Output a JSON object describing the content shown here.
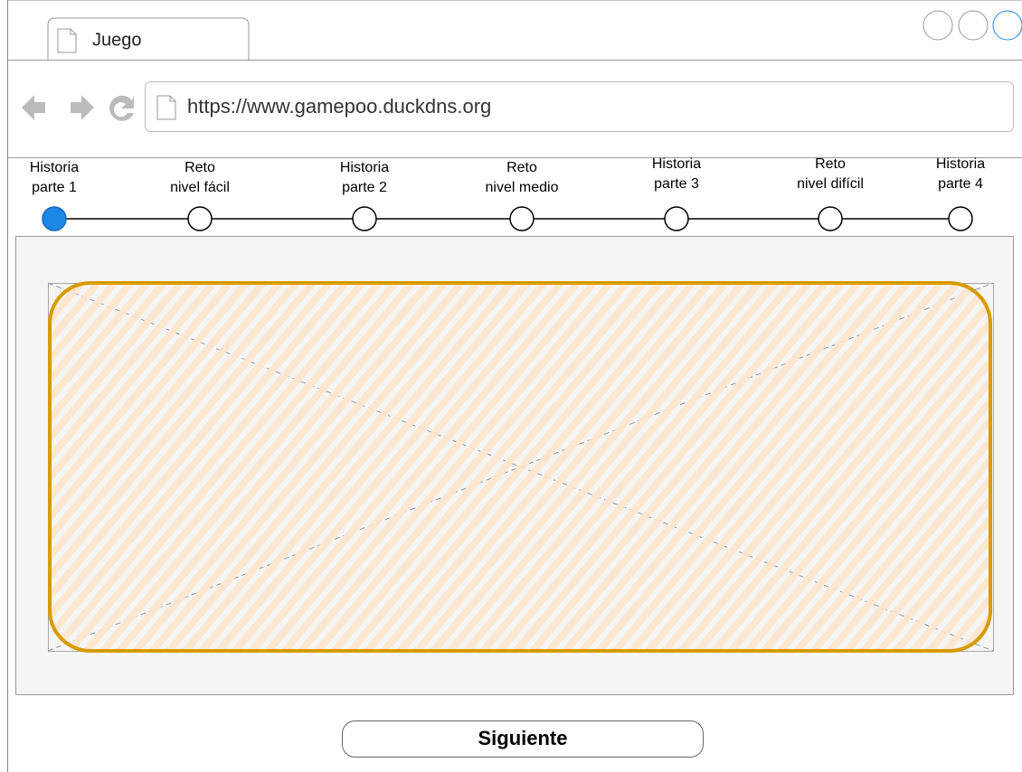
{
  "browser": {
    "tab_title": "Juego",
    "url": "https://www.gamepoo.duckdns.org"
  },
  "steps": [
    [
      "Historia",
      "parte 1"
    ],
    [
      "Reto",
      "nivel fácil"
    ],
    [
      "Historia",
      "parte 2"
    ],
    [
      "Reto",
      "nivel medio"
    ],
    [
      "Historia",
      "parte 3"
    ],
    [
      "Reto",
      "nivel difícil"
    ],
    [
      "Historia",
      "parte 4"
    ]
  ],
  "active_step": 0,
  "button": {
    "label": "Siguiente"
  }
}
